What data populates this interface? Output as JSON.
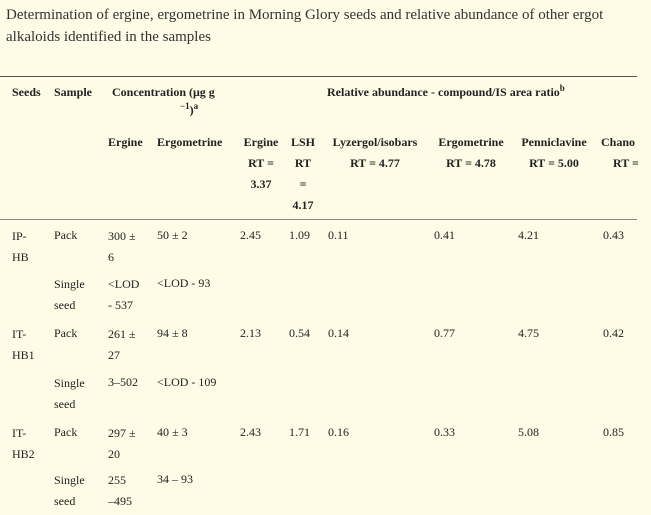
{
  "caption": "Determination of ergine, ergometrine in Morning Glory seeds and relative abundance of other ergot alkaloids identified in the samples",
  "header": {
    "seeds": "Seeds",
    "sample": "Sample",
    "concentration": "Concentration (μg g",
    "concentration_sup1": "−1",
    "concentration_tail": ")",
    "concentration_sup2": "a",
    "relative": "Relative abundance - compound/IS area ratio",
    "relative_sup": "b",
    "ergine": "Ergine",
    "ergometrine": "Ergometrine",
    "ergine_rt": [
      "Ergine",
      "RT =",
      "3.37"
    ],
    "lsh_rt": [
      "LSH",
      "RT",
      "=",
      "4.17"
    ],
    "lyzergol": [
      "Lyzergol/isobars",
      "RT = 4.77"
    ],
    "ergometrine_rt": [
      "Ergometrine",
      "RT = 4.78"
    ],
    "penniclavine": [
      "Penniclavine",
      "RT = 5.00"
    ],
    "chano": [
      "Chano",
      "RT ="
    ]
  },
  "rows": [
    {
      "seed": [
        "IP-",
        "HB"
      ],
      "pack": {
        "label": "Pack",
        "ergine": [
          "300 ±",
          "6"
        ],
        "ergometrine": "50 ± 2",
        "ergine_rt": "2.45",
        "lsh": "1.09",
        "lyzergol": "0.11",
        "ergometrine_rt": "0.41",
        "penniclavine": "4.21",
        "chano": "0.43"
      },
      "single": {
        "label": [
          "Single",
          "seed"
        ],
        "ergine": [
          "<LOD",
          "- 537"
        ],
        "ergometrine": "<LOD - 93"
      }
    },
    {
      "seed": [
        "IT-",
        "HB1"
      ],
      "pack": {
        "label": "Pack",
        "ergine": [
          "261 ±",
          "27"
        ],
        "ergometrine": "94 ± 8",
        "ergine_rt": "2.13",
        "lsh": "0.54",
        "lyzergol": "0.14",
        "ergometrine_rt": "0.77",
        "penniclavine": "4.75",
        "chano": "0.42"
      },
      "single": {
        "label": [
          "Single",
          "seed"
        ],
        "ergine": [
          "3–502"
        ],
        "ergometrine": "<LOD - 109"
      }
    },
    {
      "seed": [
        "IT-",
        "HB2"
      ],
      "pack": {
        "label": "Pack",
        "ergine": [
          "297 ±",
          "20"
        ],
        "ergometrine": "40 ± 3",
        "ergine_rt": "2.43",
        "lsh": "1.71",
        "lyzergol": "0.16",
        "ergometrine_rt": "0.33",
        "penniclavine": "5.08",
        "chano": "0.85"
      },
      "single": {
        "label": [
          "Single",
          "seed"
        ],
        "ergine": [
          "255",
          "–495"
        ],
        "ergometrine": "34 – 93"
      }
    }
  ]
}
